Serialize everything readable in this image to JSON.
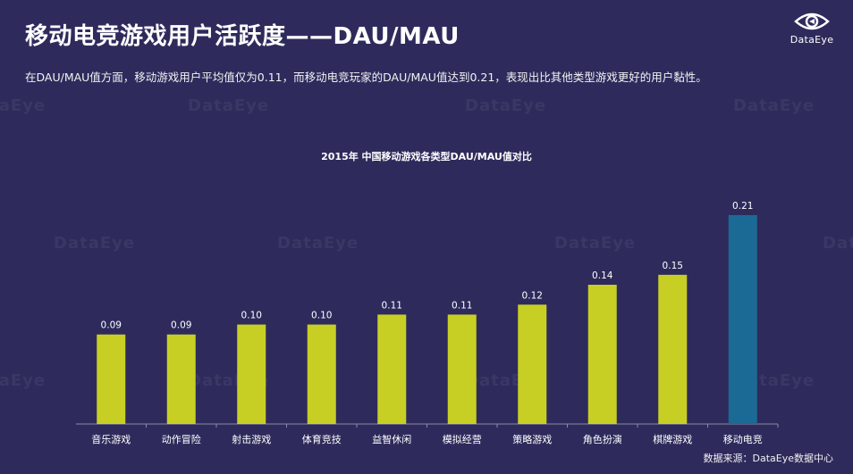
{
  "header": {
    "title": "移动电竞游戏用户活跃度——DAU/MAU",
    "subtitle": "在DAU/MAU值方面，移动游戏用户平均值仅为0.11，而移动电竞玩家的DAU/MAU值达到0.21，表现出比其他类型游戏更好的用户黏性。"
  },
  "logo": {
    "text": "DataEye",
    "icon": "eye-icon"
  },
  "footer": {
    "source": "数据来源：DataEye数据中心"
  },
  "colors": {
    "background": "#2e2b5c",
    "bar": "#c8cf24",
    "highlight": "#1b6a96"
  },
  "chart_data": {
    "type": "bar",
    "title": "2015年 中国移动游戏各类型DAU/MAU值对比",
    "categories": [
      "音乐游戏",
      "动作冒险",
      "射击游戏",
      "体育竞技",
      "益智休闲",
      "模拟经营",
      "策略游戏",
      "角色扮演",
      "棋牌游戏",
      "移动电竞"
    ],
    "values": [
      0.09,
      0.09,
      0.1,
      0.1,
      0.11,
      0.11,
      0.12,
      0.14,
      0.15,
      0.21
    ],
    "value_labels": [
      "0.09",
      "0.09",
      "0.10",
      "0.10",
      "0.11",
      "0.11",
      "0.12",
      "0.14",
      "0.15",
      "0.21"
    ],
    "highlight_index": 9,
    "xlabel": "",
    "ylabel": "",
    "ylim": [
      0,
      0.21
    ],
    "grid": false,
    "legend": "none"
  }
}
